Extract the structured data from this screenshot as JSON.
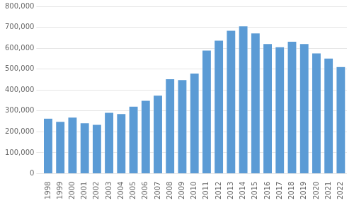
{
  "chart_data": {
    "type": "bar",
    "categories": [
      "1998",
      "1999",
      "2000",
      "2001",
      "2002",
      "2003",
      "2004",
      "2005",
      "2006",
      "2007",
      "2008",
      "2009",
      "2010",
      "2011",
      "2012",
      "2013",
      "2014",
      "2015",
      "2016",
      "2017",
      "2018",
      "2019",
      "2020",
      "2021",
      "2022"
    ],
    "values": [
      265000,
      250000,
      270000,
      243000,
      235000,
      293000,
      287000,
      322000,
      350000,
      375000,
      453000,
      449000,
      480000,
      590000,
      638000,
      685000,
      706000,
      672000,
      622000,
      606000,
      633000,
      622000,
      577000,
      552000,
      512000
    ],
    "color": "#5B9BD5",
    "ylim": [
      0,
      800000
    ],
    "yticks": [
      0,
      {
        "value": 100000,
        "label": "100,000"
      },
      {
        "value": 200000,
        "label": "200,000"
      },
      {
        "value": 300000,
        "label": "300,000"
      },
      {
        "value": 400000,
        "label": "400,000"
      },
      {
        "value": 500000,
        "label": "500,000"
      },
      {
        "value": 600000,
        "label": "600,000"
      },
      {
        "value": 700000,
        "label": "700,000"
      },
      {
        "value": 800000,
        "label": "800,000"
      }
    ],
    "grid": true
  }
}
